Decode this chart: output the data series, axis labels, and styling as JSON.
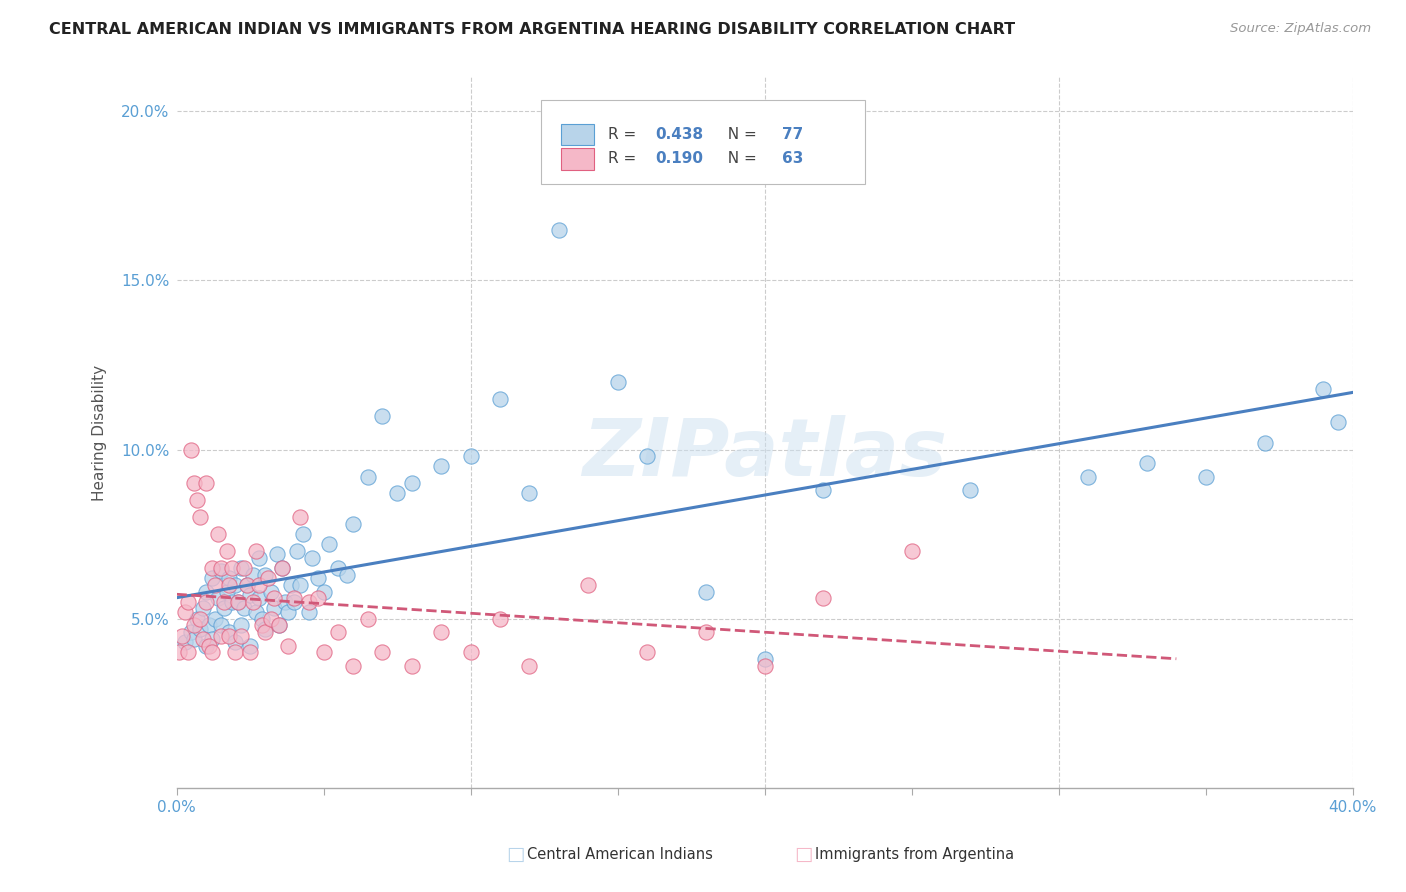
{
  "title": "CENTRAL AMERICAN INDIAN VS IMMIGRANTS FROM ARGENTINA HEARING DISABILITY CORRELATION CHART",
  "source_text": "Source: ZipAtlas.com",
  "ylabel": "Hearing Disability",
  "xlim": [
    0.0,
    0.4
  ],
  "ylim": [
    0.0,
    0.21
  ],
  "xticks": [
    0.0,
    0.05,
    0.1,
    0.15,
    0.2,
    0.25,
    0.3,
    0.35,
    0.4
  ],
  "xticklabels": [
    "0.0%",
    "",
    "",
    "",
    "",
    "",
    "",
    "",
    "40.0%"
  ],
  "yticks": [
    0.0,
    0.05,
    0.1,
    0.15,
    0.2
  ],
  "yticklabels": [
    "",
    "5.0%",
    "10.0%",
    "15.0%",
    "20.0%"
  ],
  "blue_R": "0.438",
  "blue_N": "77",
  "pink_R": "0.190",
  "pink_N": "63",
  "legend_label_blue": "Central American Indians",
  "legend_label_pink": "Immigrants from Argentina",
  "blue_color": "#b8d4ea",
  "pink_color": "#f5b8c8",
  "blue_edge_color": "#5a9fd4",
  "pink_edge_color": "#e06080",
  "blue_line_color": "#4a7fc0",
  "pink_line_color": "#d05878",
  "watermark": "ZIPatlas",
  "blue_scatter_x": [
    0.003,
    0.005,
    0.006,
    0.007,
    0.008,
    0.009,
    0.01,
    0.01,
    0.011,
    0.012,
    0.012,
    0.013,
    0.014,
    0.015,
    0.015,
    0.016,
    0.017,
    0.018,
    0.018,
    0.019,
    0.02,
    0.02,
    0.021,
    0.022,
    0.022,
    0.023,
    0.024,
    0.025,
    0.025,
    0.026,
    0.027,
    0.028,
    0.028,
    0.029,
    0.03,
    0.03,
    0.032,
    0.033,
    0.034,
    0.035,
    0.036,
    0.037,
    0.038,
    0.039,
    0.04,
    0.041,
    0.042,
    0.043,
    0.045,
    0.046,
    0.048,
    0.05,
    0.052,
    0.055,
    0.058,
    0.06,
    0.065,
    0.07,
    0.075,
    0.08,
    0.09,
    0.1,
    0.11,
    0.12,
    0.13,
    0.15,
    0.16,
    0.18,
    0.2,
    0.22,
    0.27,
    0.31,
    0.33,
    0.35,
    0.37,
    0.39,
    0.395
  ],
  "blue_scatter_y": [
    0.043,
    0.046,
    0.044,
    0.05,
    0.047,
    0.053,
    0.042,
    0.058,
    0.048,
    0.044,
    0.062,
    0.05,
    0.056,
    0.048,
    0.064,
    0.053,
    0.058,
    0.046,
    0.062,
    0.055,
    0.043,
    0.06,
    0.055,
    0.048,
    0.065,
    0.053,
    0.06,
    0.042,
    0.057,
    0.063,
    0.052,
    0.056,
    0.068,
    0.05,
    0.047,
    0.063,
    0.058,
    0.053,
    0.069,
    0.048,
    0.065,
    0.055,
    0.052,
    0.06,
    0.055,
    0.07,
    0.06,
    0.075,
    0.052,
    0.068,
    0.062,
    0.058,
    0.072,
    0.065,
    0.063,
    0.078,
    0.092,
    0.11,
    0.087,
    0.09,
    0.095,
    0.098,
    0.115,
    0.087,
    0.165,
    0.12,
    0.098,
    0.058,
    0.038,
    0.088,
    0.088,
    0.092,
    0.096,
    0.092,
    0.102,
    0.118,
    0.108
  ],
  "pink_scatter_x": [
    0.001,
    0.002,
    0.003,
    0.004,
    0.004,
    0.005,
    0.006,
    0.006,
    0.007,
    0.008,
    0.008,
    0.009,
    0.01,
    0.01,
    0.011,
    0.012,
    0.012,
    0.013,
    0.014,
    0.015,
    0.015,
    0.016,
    0.017,
    0.018,
    0.018,
    0.019,
    0.02,
    0.021,
    0.022,
    0.023,
    0.024,
    0.025,
    0.026,
    0.027,
    0.028,
    0.029,
    0.03,
    0.031,
    0.032,
    0.033,
    0.035,
    0.036,
    0.038,
    0.04,
    0.042,
    0.045,
    0.048,
    0.05,
    0.055,
    0.06,
    0.065,
    0.07,
    0.08,
    0.09,
    0.1,
    0.11,
    0.12,
    0.14,
    0.16,
    0.18,
    0.2,
    0.22,
    0.25
  ],
  "pink_scatter_y": [
    0.04,
    0.045,
    0.052,
    0.04,
    0.055,
    0.1,
    0.09,
    0.048,
    0.085,
    0.05,
    0.08,
    0.044,
    0.055,
    0.09,
    0.042,
    0.04,
    0.065,
    0.06,
    0.075,
    0.045,
    0.065,
    0.055,
    0.07,
    0.045,
    0.06,
    0.065,
    0.04,
    0.055,
    0.045,
    0.065,
    0.06,
    0.04,
    0.055,
    0.07,
    0.06,
    0.048,
    0.046,
    0.062,
    0.05,
    0.056,
    0.048,
    0.065,
    0.042,
    0.056,
    0.08,
    0.055,
    0.056,
    0.04,
    0.046,
    0.036,
    0.05,
    0.04,
    0.036,
    0.046,
    0.04,
    0.05,
    0.036,
    0.06,
    0.04,
    0.046,
    0.036,
    0.056,
    0.07
  ]
}
